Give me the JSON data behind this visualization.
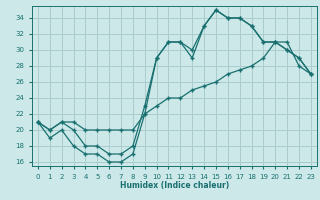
{
  "xlabel": "Humidex (Indice chaleur)",
  "bg_color": "#cce8e8",
  "grid_color": "#aacccc",
  "line_color": "#1a7070",
  "xlim": [
    -0.5,
    23.5
  ],
  "ylim": [
    15.5,
    35.5
  ],
  "xticks": [
    0,
    1,
    2,
    3,
    4,
    5,
    6,
    7,
    8,
    9,
    10,
    11,
    12,
    13,
    14,
    15,
    16,
    17,
    18,
    19,
    20,
    21,
    22,
    23
  ],
  "yticks": [
    16,
    18,
    20,
    22,
    24,
    26,
    28,
    30,
    32,
    34
  ],
  "line_jagged_x": [
    0,
    1,
    2,
    3,
    4,
    5,
    6,
    7,
    8,
    9,
    10,
    11,
    12,
    13,
    14,
    15,
    16,
    17,
    18,
    19,
    20,
    21,
    22,
    23
  ],
  "line_jagged_y": [
    21,
    19,
    20,
    18,
    17,
    17,
    16,
    16,
    17,
    22,
    29,
    31,
    31,
    29,
    33,
    35,
    34,
    34,
    33,
    31,
    31,
    30,
    29,
    27
  ],
  "line_top_x": [
    0,
    1,
    2,
    3,
    4,
    5,
    6,
    7,
    8,
    9,
    10,
    11,
    12,
    13,
    14,
    15,
    16,
    17,
    18,
    19,
    20,
    21,
    22,
    23
  ],
  "line_top_y": [
    21,
    20,
    21,
    20,
    18,
    18,
    17,
    17,
    18,
    23,
    29,
    31,
    31,
    30,
    33,
    35,
    34,
    34,
    33,
    31,
    31,
    30,
    29,
    27
  ],
  "line_diag_x": [
    0,
    1,
    2,
    3,
    4,
    5,
    6,
    7,
    8,
    9,
    10,
    11,
    12,
    13,
    14,
    15,
    16,
    17,
    18,
    19,
    20,
    21,
    22,
    23
  ],
  "line_diag_y": [
    21,
    20,
    21,
    21,
    20,
    20,
    20,
    20,
    20,
    22,
    23,
    24,
    24,
    25,
    25.5,
    26,
    27,
    27.5,
    28,
    29,
    31,
    31,
    28,
    27
  ]
}
